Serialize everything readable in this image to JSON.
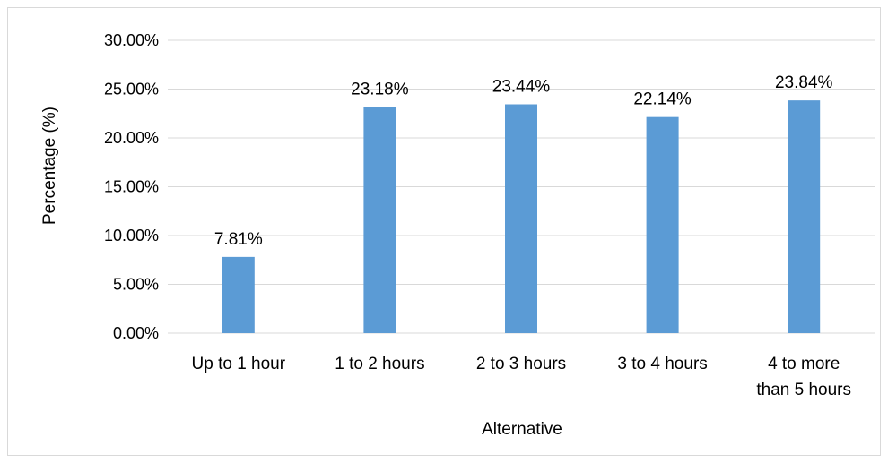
{
  "chart_data": {
    "type": "bar",
    "categories": [
      [
        "Up to 1 hour"
      ],
      [
        "1 to 2 hours"
      ],
      [
        "2 to 3 hours"
      ],
      [
        "3 to 4 hours"
      ],
      [
        "4 to more",
        "than 5 hours"
      ]
    ],
    "values": [
      7.81,
      23.18,
      23.44,
      22.14,
      23.84
    ],
    "data_labels": [
      "7.81%",
      "23.18%",
      "23.44%",
      "22.14%",
      "23.84%"
    ],
    "y_ticks": [
      0,
      5,
      10,
      15,
      20,
      25,
      30
    ],
    "y_tick_labels": [
      "0.00%",
      "5.00%",
      "10.00%",
      "15.00%",
      "20.00%",
      "25.00%",
      "30.00%"
    ],
    "ylim": [
      0,
      30
    ],
    "xlabel": "Alternative",
    "ylabel": "Percentage (%)",
    "grid": true,
    "legend": "none",
    "colors": {
      "bar": "#5b9bd5",
      "grid": "#d9d9d9",
      "text": "#000000"
    }
  }
}
